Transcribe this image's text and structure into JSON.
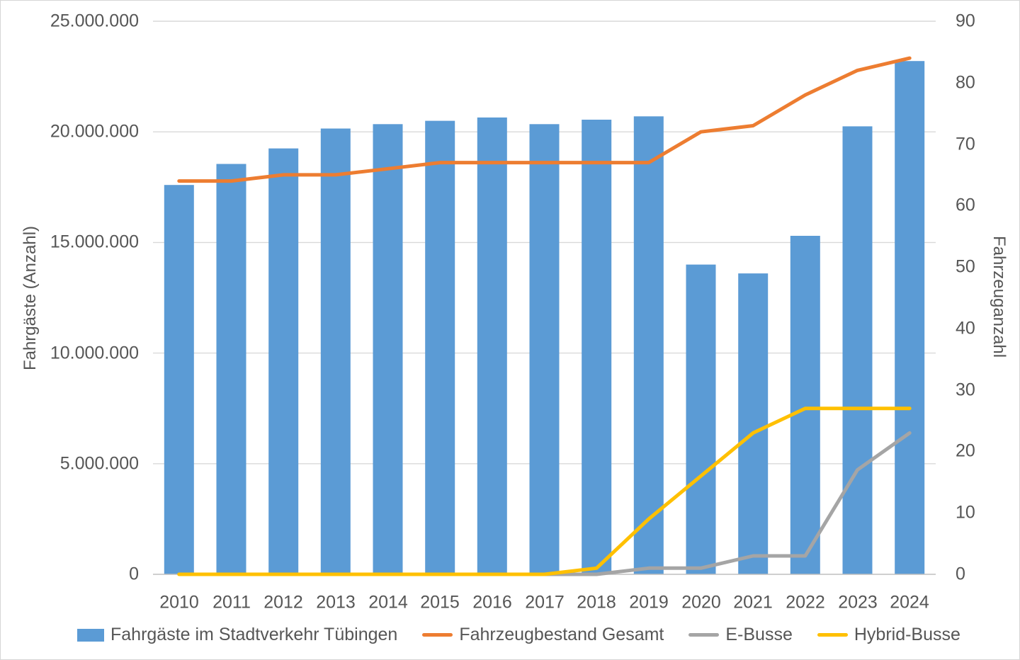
{
  "chart_data": {
    "type": "bar",
    "title": "",
    "categories": [
      "2010",
      "2011",
      "2012",
      "2013",
      "2014",
      "2015",
      "2016",
      "2017",
      "2018",
      "2019",
      "2020",
      "2021",
      "2022",
      "2023",
      "2024"
    ],
    "series": [
      {
        "name": "Fahrgäste im Stadtverkehr Tübingen",
        "type": "bar",
        "axis": "left",
        "color": "#5B9BD5",
        "values": [
          17600000,
          18550000,
          19250000,
          20150000,
          20350000,
          20500000,
          20650000,
          20350000,
          20550000,
          20700000,
          14000000,
          13600000,
          15300000,
          20250000,
          23200000
        ]
      },
      {
        "name": "Fahrzeugbestand Gesamt",
        "type": "line",
        "axis": "right",
        "color": "#ED7D31",
        "values": [
          64,
          64,
          65,
          65,
          66,
          67,
          67,
          67,
          67,
          67,
          72,
          73,
          78,
          82,
          84
        ]
      },
      {
        "name": "E-Busse",
        "type": "line",
        "axis": "right",
        "color": "#A5A5A5",
        "values": [
          0,
          0,
          0,
          0,
          0,
          0,
          0,
          0,
          0,
          1,
          1,
          3,
          3,
          17,
          23
        ]
      },
      {
        "name": "Hybrid-Busse",
        "type": "line",
        "axis": "right",
        "color": "#FFC000",
        "values": [
          0,
          0,
          0,
          0,
          0,
          0,
          0,
          0,
          1,
          9,
          16,
          23,
          27,
          27,
          27
        ]
      }
    ],
    "left_axis": {
      "label": "Fahrgäste (Anzahl)",
      "min": 0,
      "max": 25000000,
      "tick_step": 5000000,
      "tick_labels": [
        "0",
        "5.000.000",
        "10.000.000",
        "15.000.000",
        "20.000.000",
        "25.000.000"
      ]
    },
    "right_axis": {
      "label": "Fahrzeuganzahl",
      "min": 0,
      "max": 90,
      "tick_step": 10,
      "tick_labels": [
        "0",
        "10",
        "20",
        "30",
        "40",
        "50",
        "60",
        "70",
        "80",
        "90"
      ]
    },
    "grid": true,
    "legend_position": "bottom",
    "colors": {
      "gridline": "#D9D9D9",
      "axis_line": "#BFBFBF",
      "text": "#565656"
    }
  }
}
